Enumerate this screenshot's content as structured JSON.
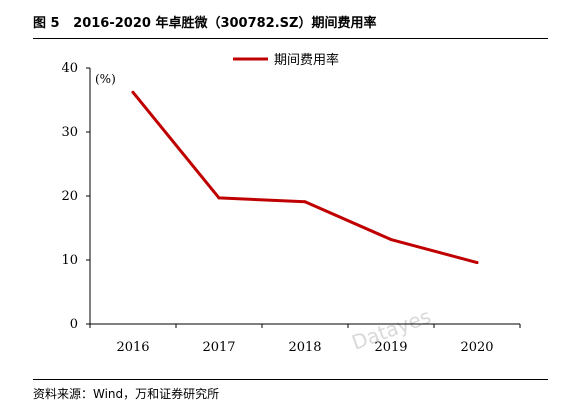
{
  "header": {
    "figure_label": "图 5",
    "title": "2016-2020 年卓胜微（300782.SZ）期间费用率"
  },
  "source_note": "资料来源：Wind，万和证券研究所",
  "watermark": "Datayes",
  "chart_data": {
    "type": "line",
    "title": "2016-2020 年卓胜微（300782.SZ）期间费用率",
    "x": [
      "2016",
      "2017",
      "2018",
      "2019",
      "2020"
    ],
    "series": [
      {
        "name": "期间费用率",
        "values": [
          36.2,
          19.7,
          19.1,
          13.2,
          9.6
        ],
        "color": "#c00000"
      }
    ],
    "yunit": "(%)",
    "ylim": [
      0,
      40
    ],
    "yticks": [
      0,
      10,
      20,
      30,
      40
    ],
    "grid": false,
    "legend": "top-center"
  }
}
